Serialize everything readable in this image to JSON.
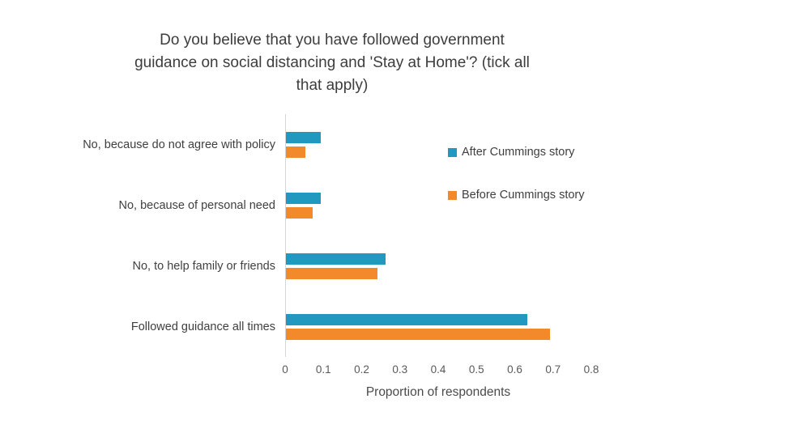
{
  "chart_data": {
    "type": "bar",
    "orientation": "horizontal",
    "title": "Do you believe that you have followed government guidance on social distancing and 'Stay at Home'? (tick all that apply)",
    "title_lines": [
      "Do you believe that you have followed government",
      "guidance on social distancing and 'Stay at Home'? (tick all",
      "that apply)"
    ],
    "categories": [
      "No, because do not agree with policy",
      "No, because of personal need",
      "No, to help family or friends",
      "Followed guidance all times"
    ],
    "series": [
      {
        "name": "After Cummings story",
        "color": "#2199BE",
        "values": [
          0.09,
          0.09,
          0.26,
          0.63
        ]
      },
      {
        "name": "Before Cummings story",
        "color": "#F28A2B",
        "values": [
          0.05,
          0.07,
          0.24,
          0.69
        ]
      }
    ],
    "xlabel": "Proportion of respondents",
    "xlim": [
      0,
      0.8
    ],
    "xtick_labels": [
      "0",
      "0.1",
      "0.2",
      "0.3",
      "0.4",
      "0.5",
      "0.6",
      "0.7",
      "0.8"
    ],
    "legend_position": "inside-top-right",
    "grid": false
  }
}
